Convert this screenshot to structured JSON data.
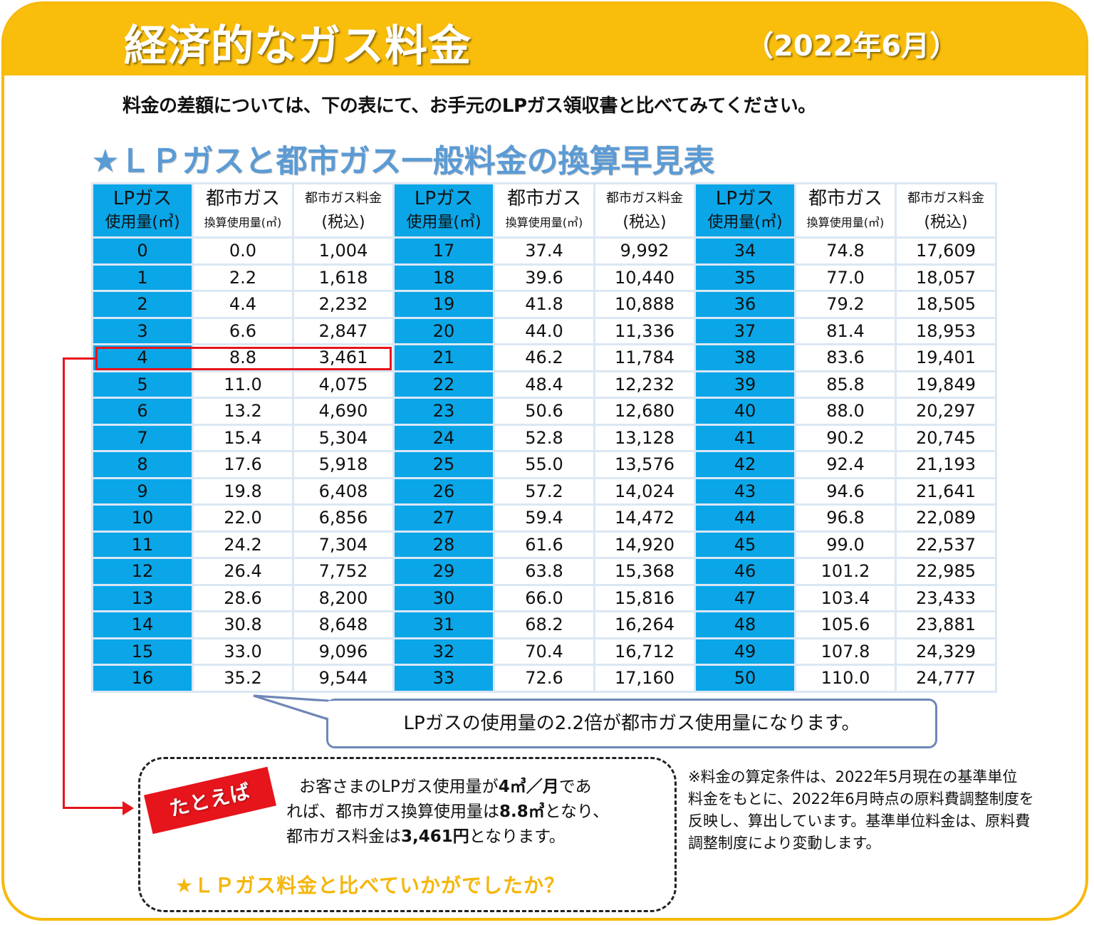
{
  "header": {
    "title": "経済的なガス料金",
    "date": "（2022年6月）"
  },
  "intro": "料金の差額については、下の表にて、お手元のLPガス領収書と比べてみてください。",
  "subtitle": "★ＬＰガスと都市ガス一般料金の換算早見表",
  "table": {
    "headers": {
      "lp_top": "LPガス",
      "lp_bottom": "使用量(㎥)",
      "city_top": "都市ガス",
      "city_bottom": "換算使用量(㎥)",
      "fee_top": "都市ガス料金",
      "fee_bottom": "(税込)"
    },
    "rows": [
      [
        "0",
        "0.0",
        "1,004",
        "17",
        "37.4",
        "9,992",
        "34",
        "74.8",
        "17,609"
      ],
      [
        "1",
        "2.2",
        "1,618",
        "18",
        "39.6",
        "10,440",
        "35",
        "77.0",
        "18,057"
      ],
      [
        "2",
        "4.4",
        "2,232",
        "19",
        "41.8",
        "10,888",
        "36",
        "79.2",
        "18,505"
      ],
      [
        "3",
        "6.6",
        "2,847",
        "20",
        "44.0",
        "11,336",
        "37",
        "81.4",
        "18,953"
      ],
      [
        "4",
        "8.8",
        "3,461",
        "21",
        "46.2",
        "11,784",
        "38",
        "83.6",
        "19,401"
      ],
      [
        "5",
        "11.0",
        "4,075",
        "22",
        "48.4",
        "12,232",
        "39",
        "85.8",
        "19,849"
      ],
      [
        "6",
        "13.2",
        "4,690",
        "23",
        "50.6",
        "12,680",
        "40",
        "88.0",
        "20,297"
      ],
      [
        "7",
        "15.4",
        "5,304",
        "24",
        "52.8",
        "13,128",
        "41",
        "90.2",
        "20,745"
      ],
      [
        "8",
        "17.6",
        "5,918",
        "25",
        "55.0",
        "13,576",
        "42",
        "92.4",
        "21,193"
      ],
      [
        "9",
        "19.8",
        "6,408",
        "26",
        "57.2",
        "14,024",
        "43",
        "94.6",
        "21,641"
      ],
      [
        "10",
        "22.0",
        "6,856",
        "27",
        "59.4",
        "14,472",
        "44",
        "96.8",
        "22,089"
      ],
      [
        "11",
        "24.2",
        "7,304",
        "28",
        "61.6",
        "14,920",
        "45",
        "99.0",
        "22,537"
      ],
      [
        "12",
        "26.4",
        "7,752",
        "29",
        "63.8",
        "15,368",
        "46",
        "101.2",
        "22,985"
      ],
      [
        "13",
        "28.6",
        "8,200",
        "30",
        "66.0",
        "15,816",
        "47",
        "103.4",
        "23,433"
      ],
      [
        "14",
        "30.8",
        "8,648",
        "31",
        "68.2",
        "16,264",
        "48",
        "105.6",
        "23,881"
      ],
      [
        "15",
        "33.0",
        "9,096",
        "32",
        "70.4",
        "16,712",
        "49",
        "107.8",
        "24,329"
      ],
      [
        "16",
        "35.2",
        "9,544",
        "33",
        "72.6",
        "17,160",
        "50",
        "110.0",
        "24,777"
      ]
    ]
  },
  "callout": "LPガスの使用量の2.2倍が都市ガス使用量になります。",
  "example": {
    "tag": "たとえば",
    "l1_a": "お客さまのLPガス使用量が",
    "l1_b": "4㎥／月",
    "l1_c": "であ",
    "l2_a": "れば、都市ガス換算使用量は",
    "l2_b": "8.8㎥",
    "l2_c": "となり、",
    "l3_a": "都市ガス料金は",
    "l3_b": "3,461円",
    "l3_c": "となります。",
    "question": "★ＬＰガス料金と比べていかがでしたか？"
  },
  "note": {
    "l1": "※料金の算定条件は、2022年5月現在の基準単位",
    "l2": "料金をもとに、2022年6月時点の原料費調整制度を",
    "l3": "反映し、算出しています。基準単位料金は、原料費",
    "l4": "調整制度により変動します。"
  },
  "colors": {
    "accent": "#f9bd0c",
    "lp_cell": "#0aa6e8",
    "highlight": "#e6141b",
    "subtitle": "#5b9bd5"
  }
}
